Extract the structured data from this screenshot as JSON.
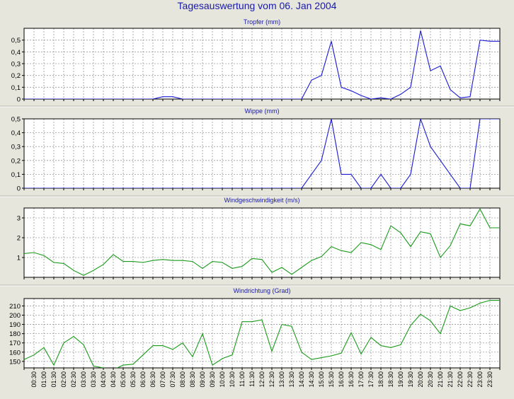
{
  "page": {
    "title": "Tagesauswertung vom 06. Jan 2004"
  },
  "colors": {
    "background": "#e6e6dc",
    "plot_bg": "#ffffff",
    "grid": "#9a9a9a",
    "title": "#1a1aa6"
  },
  "time_labels": [
    "00:30",
    "01:00",
    "01:30",
    "02:00",
    "02:30",
    "03:00",
    "03:30",
    "04:00",
    "04:30",
    "05:00",
    "05:30",
    "06:00",
    "06:30",
    "07:00",
    "07:30",
    "08:00",
    "08:30",
    "09:00",
    "09:30",
    "10:00",
    "10:30",
    "11:00",
    "11:30",
    "12:00",
    "12:30",
    "13:00",
    "13:30",
    "14:00",
    "14:30",
    "15:00",
    "15:30",
    "16:00",
    "16:30",
    "17:00",
    "17:30",
    "18:00",
    "18:30",
    "19:00",
    "19:30",
    "20:00",
    "20:30",
    "21:00",
    "21:30",
    "22:00",
    "22:30",
    "23:00",
    "23:30"
  ],
  "chart_data": [
    {
      "type": "line",
      "title": "Tropfer (mm)",
      "color": "#1a1ad6",
      "ylim": [
        0,
        0.6
      ],
      "yticks": [
        0,
        0.1,
        0.2,
        0.3,
        0.4,
        0.5
      ],
      "ytick_labels": [
        "0",
        "0,1",
        "0,2",
        "0,3",
        "0,4",
        "0,5"
      ],
      "x": [
        "00:00",
        "00:30",
        "01:00",
        "01:30",
        "02:00",
        "02:30",
        "03:00",
        "03:30",
        "04:00",
        "04:30",
        "05:00",
        "05:30",
        "06:00",
        "06:30",
        "07:00",
        "07:30",
        "08:00",
        "08:30",
        "09:00",
        "09:30",
        "10:00",
        "10:30",
        "11:00",
        "11:30",
        "12:00",
        "12:30",
        "13:00",
        "13:30",
        "14:00",
        "14:30",
        "15:00",
        "15:30",
        "16:00",
        "16:30",
        "17:00",
        "17:30",
        "18:00",
        "18:30",
        "19:00",
        "19:30",
        "20:00",
        "20:30",
        "21:00",
        "21:30",
        "22:00",
        "22:30",
        "23:00",
        "23:30",
        "24:00"
      ],
      "values": [
        0,
        0,
        0,
        0,
        0,
        0,
        0,
        0,
        0,
        0,
        0,
        0,
        0,
        0,
        0.02,
        0.02,
        0,
        0,
        0,
        0,
        0,
        0,
        0,
        0,
        0,
        0,
        0,
        0,
        0,
        0.16,
        0.2,
        0.49,
        0.1,
        0.07,
        0.03,
        0,
        0.01,
        0,
        0.04,
        0.1,
        0.58,
        0.24,
        0.28,
        0.08,
        0.01,
        0.02,
        0.5,
        0.49,
        0.49
      ]
    },
    {
      "type": "line",
      "title": "Wippe (mm)",
      "color": "#1a1ad6",
      "ylim": [
        0,
        0.5
      ],
      "yticks": [
        0,
        0.1,
        0.2,
        0.3,
        0.4,
        0.5
      ],
      "ytick_labels": [
        "0",
        "0,1",
        "0,2",
        "0,3",
        "0,4",
        "0,5"
      ],
      "x": [
        "00:00",
        "00:30",
        "01:00",
        "01:30",
        "02:00",
        "02:30",
        "03:00",
        "03:30",
        "04:00",
        "04:30",
        "05:00",
        "05:30",
        "06:00",
        "06:30",
        "07:00",
        "07:30",
        "08:00",
        "08:30",
        "09:00",
        "09:30",
        "10:00",
        "10:30",
        "11:00",
        "11:30",
        "12:00",
        "12:30",
        "13:00",
        "13:30",
        "14:00",
        "14:30",
        "15:00",
        "15:30",
        "16:00",
        "16:30",
        "17:00",
        "17:30",
        "18:00",
        "18:30",
        "19:00",
        "19:30",
        "20:00",
        "20:30",
        "21:00",
        "21:30",
        "22:00",
        "22:30",
        "23:00",
        "23:30",
        "24:00"
      ],
      "values": [
        0,
        0,
        0,
        0,
        0,
        0,
        0,
        0,
        0,
        0,
        0,
        0,
        0,
        0,
        0,
        0,
        0,
        0,
        0,
        0,
        0,
        0,
        0,
        0,
        0,
        0,
        0,
        0,
        0,
        0.1,
        0.2,
        0.5,
        0.1,
        0.1,
        0,
        0,
        0.1,
        0,
        0,
        0.1,
        0.5,
        0.3,
        0.2,
        0.1,
        0,
        0,
        0.5,
        0.5,
        0.5
      ]
    },
    {
      "type": "line",
      "title": "Windgeschwindigkeit (m/s)",
      "color": "#1a9a1a",
      "ylim": [
        0,
        3.5
      ],
      "yticks": [
        1,
        2,
        3
      ],
      "ytick_labels": [
        "1",
        "2",
        "3"
      ],
      "x": [
        "00:00",
        "00:30",
        "01:00",
        "01:30",
        "02:00",
        "02:30",
        "03:00",
        "03:30",
        "04:00",
        "04:30",
        "05:00",
        "05:30",
        "06:00",
        "06:30",
        "07:00",
        "07:30",
        "08:00",
        "08:30",
        "09:00",
        "09:30",
        "10:00",
        "10:30",
        "11:00",
        "11:30",
        "12:00",
        "12:30",
        "13:00",
        "13:30",
        "14:00",
        "14:30",
        "15:00",
        "15:30",
        "16:00",
        "16:30",
        "17:00",
        "17:30",
        "18:00",
        "18:30",
        "19:00",
        "19:30",
        "20:00",
        "20:30",
        "21:00",
        "21:30",
        "22:00",
        "22:30",
        "23:00",
        "23:30",
        "24:00"
      ],
      "values": [
        1.2,
        1.25,
        1.1,
        0.75,
        0.7,
        0.35,
        0.1,
        0.35,
        0.65,
        1.15,
        0.8,
        0.8,
        0.75,
        0.85,
        0.9,
        0.85,
        0.85,
        0.8,
        0.45,
        0.8,
        0.75,
        0.45,
        0.55,
        0.95,
        0.9,
        0.25,
        0.5,
        0.15,
        0.5,
        0.85,
        1.05,
        1.55,
        1.35,
        1.25,
        1.75,
        1.65,
        1.4,
        2.6,
        2.25,
        1.55,
        2.3,
        2.2,
        1.0,
        1.6,
        2.7,
        2.6,
        3.45,
        2.5,
        2.5
      ]
    },
    {
      "type": "line",
      "title": "Windrichtung (Grad)",
      "color": "#1a9a1a",
      "ylim": [
        143,
        218
      ],
      "yticks": [
        150,
        160,
        170,
        180,
        190,
        200,
        210
      ],
      "ytick_labels": [
        "150",
        "160",
        "170",
        "180",
        "190",
        "200",
        "210"
      ],
      "x": [
        "00:00",
        "00:30",
        "01:00",
        "01:30",
        "02:00",
        "02:30",
        "03:00",
        "03:30",
        "04:00",
        "04:30",
        "05:00",
        "05:30",
        "06:00",
        "06:30",
        "07:00",
        "07:30",
        "08:00",
        "08:30",
        "09:00",
        "09:30",
        "10:00",
        "10:30",
        "11:00",
        "11:30",
        "12:00",
        "12:30",
        "13:00",
        "13:30",
        "14:00",
        "14:30",
        "15:00",
        "15:30",
        "16:00",
        "16:30",
        "17:00",
        "17:30",
        "18:00",
        "18:30",
        "19:00",
        "19:30",
        "20:00",
        "20:30",
        "21:00",
        "21:30",
        "22:00",
        "22:30",
        "23:00",
        "23:30",
        "24:00"
      ],
      "values": [
        152,
        157,
        165,
        146,
        170,
        177,
        168,
        145,
        143,
        141,
        146,
        147,
        157,
        167,
        167,
        163,
        170,
        155,
        180,
        146,
        153,
        157,
        193,
        193,
        195,
        161,
        190,
        188,
        160,
        152,
        154,
        156,
        159,
        181,
        158,
        176,
        167,
        165,
        168,
        189,
        201,
        194,
        180,
        210,
        205,
        208,
        213,
        216,
        216
      ]
    }
  ]
}
